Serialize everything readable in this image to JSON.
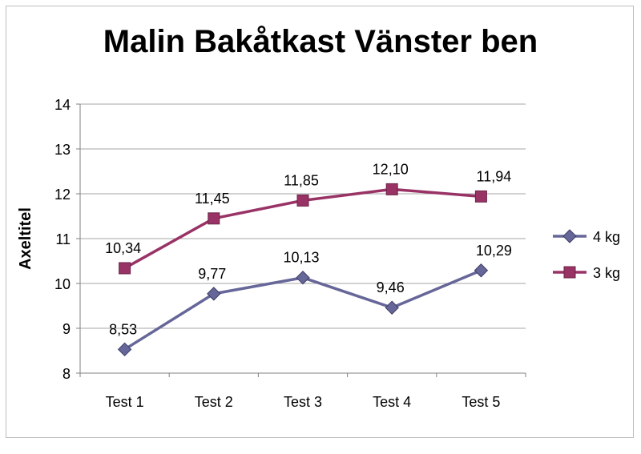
{
  "chart_data": {
    "type": "line",
    "title": "Malin Bakåtkast Vänster ben",
    "xlabel": "",
    "ylabel": "Axeltitel",
    "categories": [
      "Test 1",
      "Test 2",
      "Test 3",
      "Test 4",
      "Test 5"
    ],
    "ylim": [
      8,
      14
    ],
    "yticks": [
      "8",
      "9",
      "10",
      "11",
      "12",
      "13",
      "14"
    ],
    "grid": true,
    "legend_position": "right",
    "series": [
      {
        "name": "4 kg",
        "marker": "diamond",
        "color": "#666699",
        "values": [
          8.53,
          9.77,
          10.13,
          9.46,
          10.29
        ],
        "labels": [
          "8,53",
          "9,77",
          "10,13",
          "9,46",
          "10,29"
        ]
      },
      {
        "name": "3 kg",
        "marker": "square",
        "color": "#993366",
        "values": [
          10.34,
          11.45,
          11.85,
          12.1,
          11.94
        ],
        "labels": [
          "10,34",
          "11,45",
          "11,85",
          "12,10",
          "11,94"
        ]
      }
    ]
  }
}
